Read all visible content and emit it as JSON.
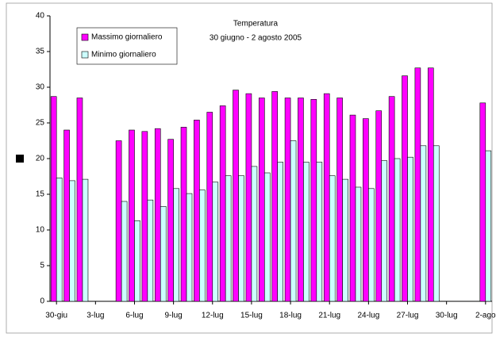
{
  "chart_data": {
    "type": "bar",
    "title": "Temperatura",
    "subtitle": "30 giugno - 2 agosto 2005",
    "categories": [
      "30-giu",
      null,
      null,
      "3-lug",
      null,
      null,
      "6-lug",
      null,
      null,
      "9-lug",
      null,
      null,
      "12-lug",
      null,
      null,
      "15-lug",
      null,
      null,
      "18-lug",
      null,
      null,
      "21-lug",
      null,
      null,
      "24-lug",
      null,
      null,
      "27-lug",
      null,
      null,
      "30-lug",
      null,
      null,
      "2-ago"
    ],
    "series": [
      {
        "name": "Massimo giornaliero",
        "color": "#ff00ff",
        "values": [
          28.7,
          24.0,
          28.5,
          null,
          null,
          22.5,
          24.0,
          23.8,
          24.2,
          22.7,
          24.4,
          25.4,
          26.5,
          27.4,
          29.6,
          29.1,
          28.5,
          29.4,
          28.5,
          28.5,
          28.3,
          29.1,
          28.5,
          26.1,
          25.6,
          26.7,
          28.7,
          31.6,
          32.7,
          32.7,
          null,
          null,
          null,
          27.8
        ]
      },
      {
        "name": "Minimo giornaliero",
        "color": "#ccffff",
        "values": [
          17.3,
          16.9,
          17.1,
          null,
          null,
          14.0,
          11.3,
          14.2,
          13.3,
          15.8,
          15.1,
          15.6,
          16.7,
          17.6,
          17.6,
          18.9,
          18.0,
          19.5,
          22.5,
          19.5,
          19.5,
          17.6,
          17.1,
          16.0,
          15.8,
          19.7,
          20.0,
          20.2,
          21.8,
          21.8,
          null,
          null,
          null,
          21.1
        ]
      }
    ],
    "ylim": [
      0,
      40
    ],
    "yticks": [
      0,
      5,
      10,
      15,
      20,
      25,
      30,
      35,
      40
    ],
    "grid": false,
    "legend": "top-left"
  }
}
